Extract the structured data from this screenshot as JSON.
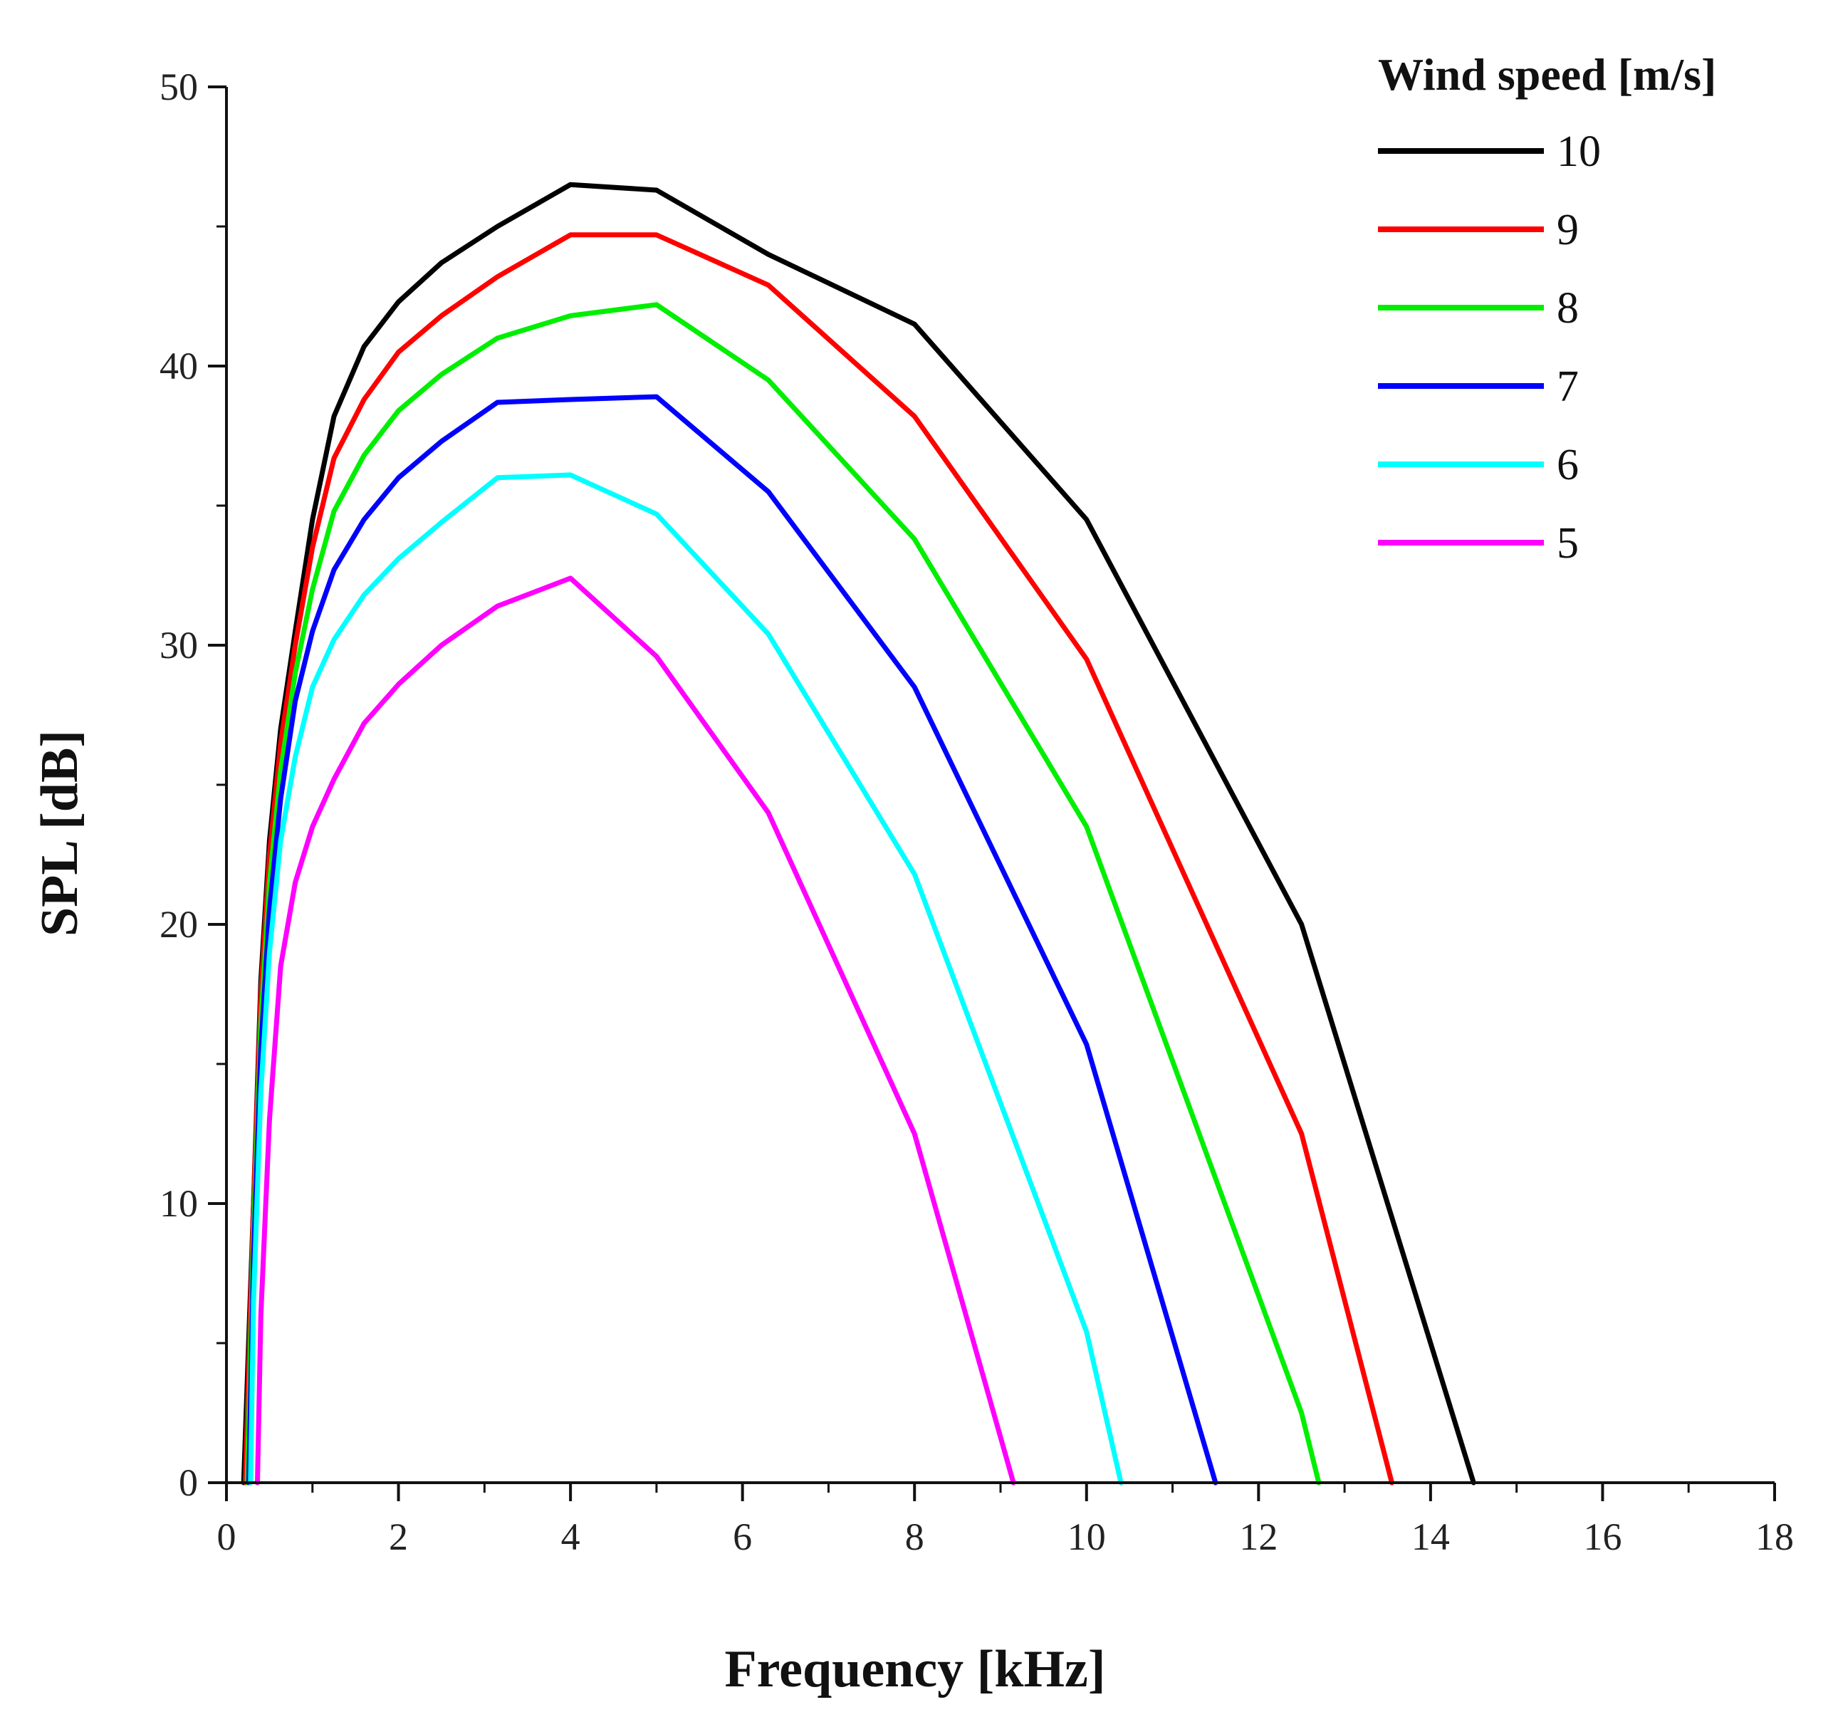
{
  "chart_data": {
    "type": "line",
    "title": "",
    "xlabel": "Frequency [kHz]",
    "ylabel": "SPL [dB]",
    "xlim": [
      0,
      18
    ],
    "ylim": [
      0,
      50
    ],
    "xticks": [
      0,
      2,
      4,
      6,
      8,
      10,
      12,
      14,
      16,
      18
    ],
    "yticks": [
      0,
      10,
      20,
      30,
      40,
      50
    ],
    "grid": false,
    "legend": {
      "title": "Wind speed [m/s]",
      "position": "top-right"
    },
    "series": [
      {
        "name": "10",
        "color": "#000000",
        "points": [
          [
            0.2,
            0
          ],
          [
            0.315,
            10
          ],
          [
            0.4,
            18
          ],
          [
            0.5,
            23
          ],
          [
            0.63,
            27
          ],
          [
            0.8,
            30.5
          ],
          [
            1.0,
            34.5
          ],
          [
            1.25,
            38.2
          ],
          [
            1.6,
            40.7
          ],
          [
            2.0,
            42.3
          ],
          [
            2.5,
            43.7
          ],
          [
            3.15,
            45
          ],
          [
            4.0,
            46.5
          ],
          [
            5.0,
            46.3
          ],
          [
            6.3,
            44
          ],
          [
            8.0,
            41.5
          ],
          [
            10.0,
            34.5
          ],
          [
            12.5,
            20
          ],
          [
            14.5,
            0
          ]
        ]
      },
      {
        "name": "9",
        "color": "#ff0000",
        "points": [
          [
            0.22,
            0
          ],
          [
            0.315,
            10
          ],
          [
            0.4,
            17.5
          ],
          [
            0.5,
            22.5
          ],
          [
            0.63,
            26.5
          ],
          [
            0.8,
            30
          ],
          [
            1.0,
            33.5
          ],
          [
            1.25,
            36.7
          ],
          [
            1.6,
            38.8
          ],
          [
            2.0,
            40.5
          ],
          [
            2.5,
            41.8
          ],
          [
            3.15,
            43.2
          ],
          [
            4.0,
            44.7
          ],
          [
            5.0,
            44.7
          ],
          [
            6.3,
            42.9
          ],
          [
            8.0,
            38.2
          ],
          [
            10.0,
            29.5
          ],
          [
            12.5,
            12.5
          ],
          [
            13.55,
            0
          ]
        ]
      },
      {
        "name": "8",
        "color": "#00ee00",
        "points": [
          [
            0.24,
            0
          ],
          [
            0.315,
            9
          ],
          [
            0.4,
            16.5
          ],
          [
            0.5,
            21.5
          ],
          [
            0.63,
            25.5
          ],
          [
            0.8,
            29
          ],
          [
            1.0,
            32
          ],
          [
            1.25,
            34.8
          ],
          [
            1.6,
            36.8
          ],
          [
            2.0,
            38.4
          ],
          [
            2.5,
            39.7
          ],
          [
            3.15,
            41
          ],
          [
            4.0,
            41.8
          ],
          [
            5.0,
            42.2
          ],
          [
            6.3,
            39.5
          ],
          [
            8.0,
            33.8
          ],
          [
            10.0,
            23.5
          ],
          [
            12.5,
            2.5
          ],
          [
            12.7,
            0
          ]
        ]
      },
      {
        "name": "7",
        "color": "#0000ff",
        "points": [
          [
            0.26,
            0
          ],
          [
            0.315,
            8
          ],
          [
            0.4,
            15.5
          ],
          [
            0.5,
            20.5
          ],
          [
            0.63,
            24.5
          ],
          [
            0.8,
            28
          ],
          [
            1.0,
            30.5
          ],
          [
            1.25,
            32.7
          ],
          [
            1.6,
            34.5
          ],
          [
            2.0,
            36
          ],
          [
            2.5,
            37.3
          ],
          [
            3.15,
            38.7
          ],
          [
            4.0,
            38.8
          ],
          [
            5.0,
            38.9
          ],
          [
            6.3,
            35.5
          ],
          [
            8.0,
            28.5
          ],
          [
            10.0,
            15.7
          ],
          [
            11.5,
            0
          ]
        ]
      },
      {
        "name": "6",
        "color": "#00ffff",
        "points": [
          [
            0.28,
            0
          ],
          [
            0.315,
            6.5
          ],
          [
            0.4,
            14
          ],
          [
            0.5,
            19
          ],
          [
            0.63,
            23
          ],
          [
            0.8,
            26
          ],
          [
            1.0,
            28.5
          ],
          [
            1.25,
            30.2
          ],
          [
            1.6,
            31.8
          ],
          [
            2.0,
            33.1
          ],
          [
            2.5,
            34.4
          ],
          [
            3.15,
            36
          ],
          [
            4.0,
            36.1
          ],
          [
            5.0,
            34.7
          ],
          [
            6.3,
            30.4
          ],
          [
            8.0,
            21.8
          ],
          [
            10.0,
            5.4
          ],
          [
            10.4,
            0
          ]
        ]
      },
      {
        "name": "5",
        "color": "#ff00ff",
        "points": [
          [
            0.36,
            0
          ],
          [
            0.4,
            6
          ],
          [
            0.5,
            13
          ],
          [
            0.63,
            18.5
          ],
          [
            0.8,
            21.5
          ],
          [
            1.0,
            23.5
          ],
          [
            1.25,
            25.2
          ],
          [
            1.6,
            27.2
          ],
          [
            2.0,
            28.6
          ],
          [
            2.5,
            30
          ],
          [
            3.15,
            31.4
          ],
          [
            4.0,
            32.4
          ],
          [
            5.0,
            29.6
          ],
          [
            6.3,
            24
          ],
          [
            8.0,
            12.5
          ],
          [
            9.15,
            0
          ]
        ]
      }
    ]
  }
}
